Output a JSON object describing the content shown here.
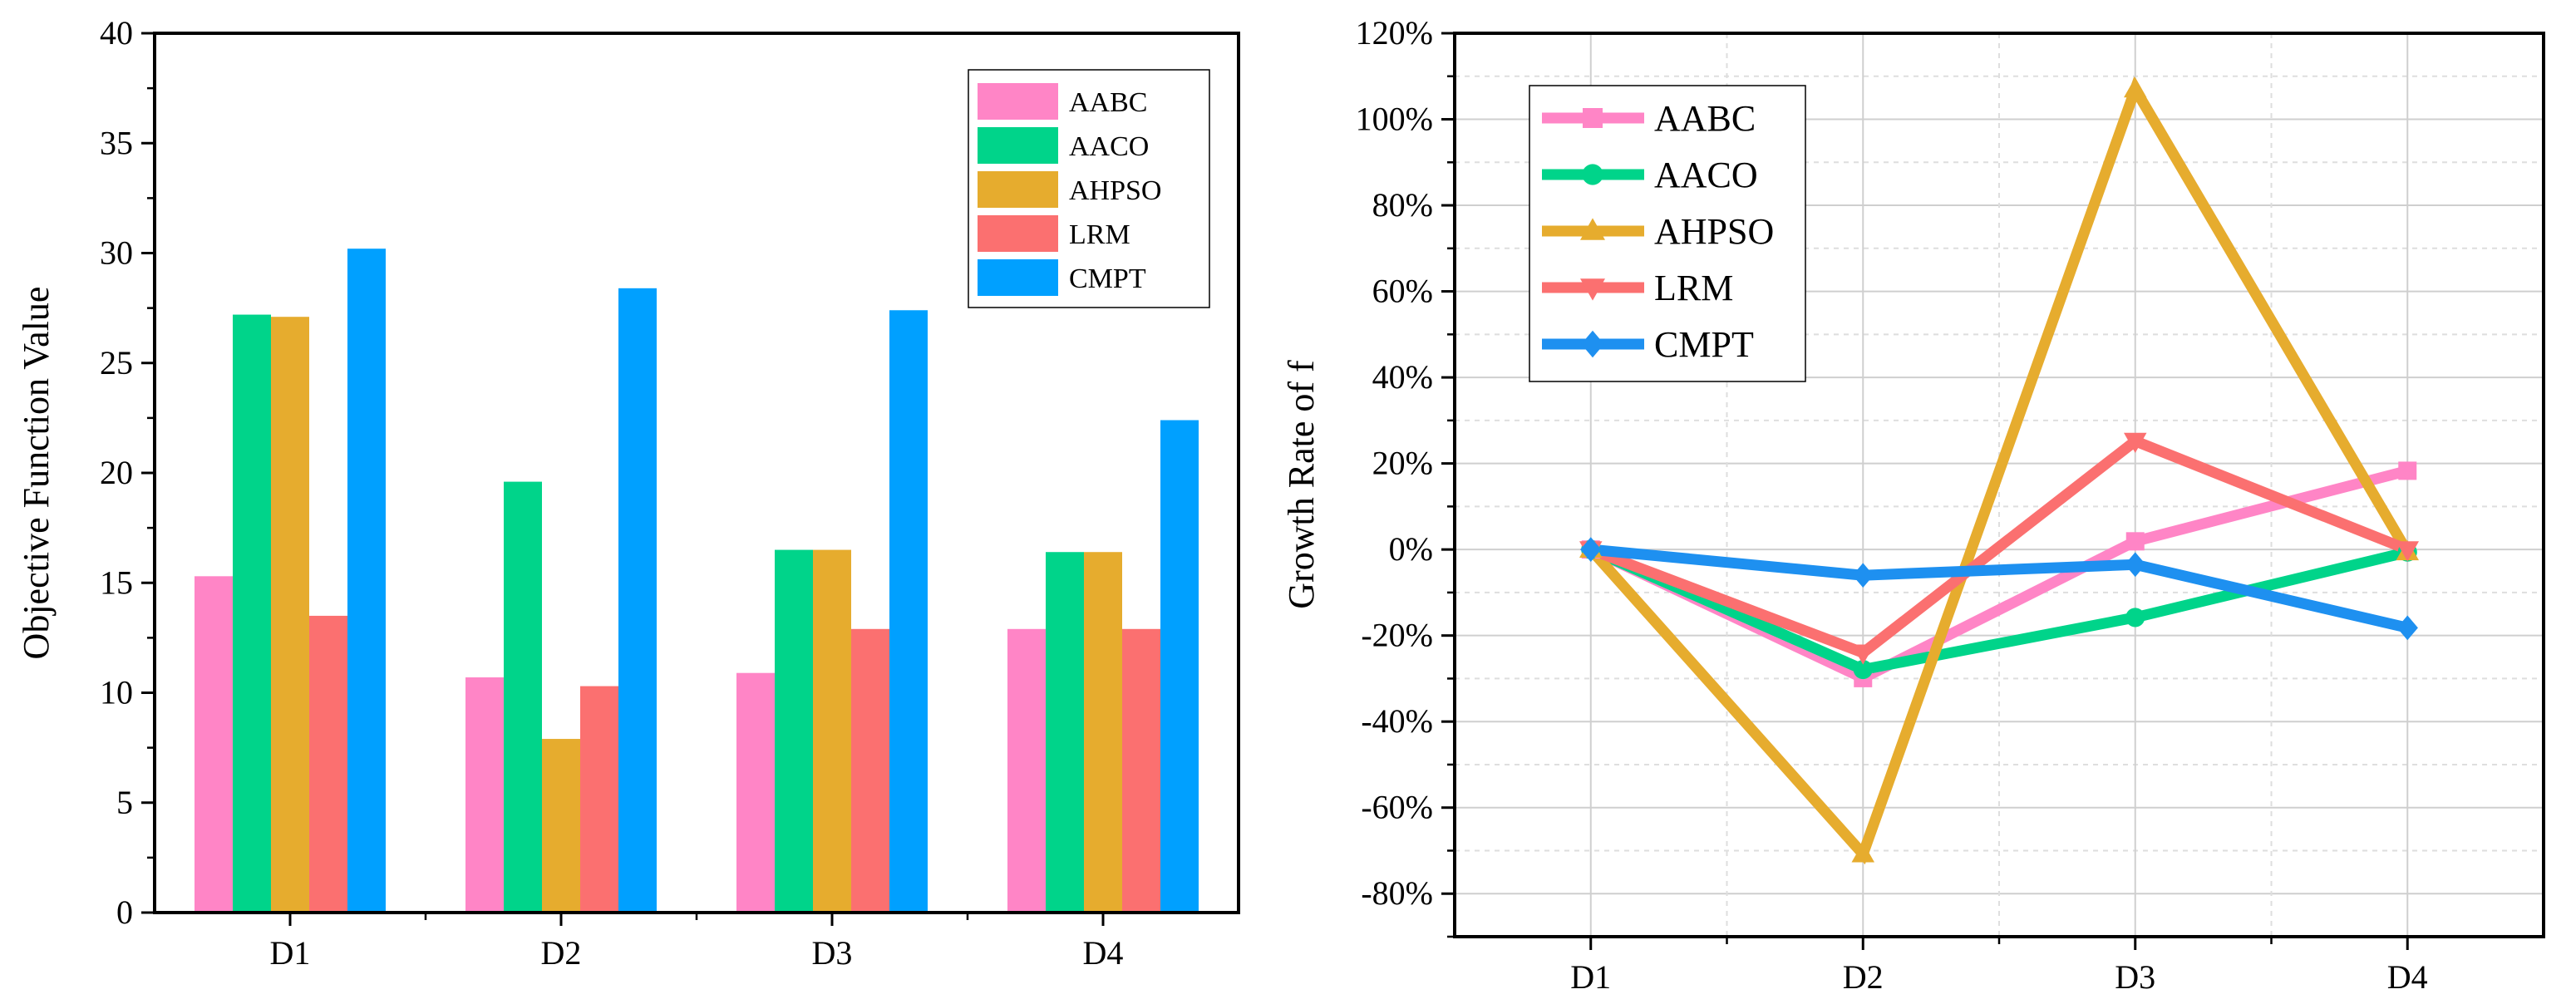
{
  "chart_data": [
    {
      "type": "bar",
      "title": "",
      "xlabel": "",
      "ylabel": "Objective Function Value",
      "categories": [
        "D1",
        "D2",
        "D3",
        "D4"
      ],
      "ylim": [
        0,
        40
      ],
      "yticks": [
        0,
        5,
        10,
        15,
        20,
        25,
        30,
        35,
        40
      ],
      "ytick_labels": [
        "0",
        "5",
        "10",
        "15",
        "20",
        "25",
        "30",
        "35",
        "40"
      ],
      "legend_position": "top-right",
      "grid": false,
      "series": [
        {
          "name": "AABC",
          "color": "#ff85c6",
          "values": [
            15.3,
            10.7,
            10.9,
            12.9
          ]
        },
        {
          "name": "AACO",
          "color": "#00d48a",
          "values": [
            27.2,
            19.6,
            16.5,
            16.4
          ]
        },
        {
          "name": "AHPSO",
          "color": "#e6ac2e",
          "values": [
            27.1,
            7.9,
            16.5,
            16.4
          ]
        },
        {
          "name": "LRM",
          "color": "#fb7070",
          "values": [
            13.5,
            10.3,
            12.9,
            12.9
          ]
        },
        {
          "name": "CMPT",
          "color": "#00a0ff",
          "values": [
            30.2,
            28.4,
            27.4,
            22.4
          ]
        }
      ]
    },
    {
      "type": "line",
      "title": "",
      "xlabel": "",
      "ylabel": "Growth Rate of f",
      "categories": [
        "D1",
        "D2",
        "D3",
        "D4"
      ],
      "ylim": [
        -90,
        120
      ],
      "yticks": [
        -80,
        -60,
        -40,
        -20,
        0,
        20,
        40,
        60,
        80,
        100,
        120
      ],
      "ytick_labels": [
        "-80%",
        "-60%",
        "-40%",
        "-20%",
        "0%",
        "20%",
        "40%",
        "60%",
        "80%",
        "100%",
        "120%"
      ],
      "legend_position": "top-left",
      "grid": true,
      "series": [
        {
          "name": "AABC",
          "color": "#ff85c6",
          "marker": "square",
          "values": [
            0,
            -29.9,
            1.9,
            18.3
          ]
        },
        {
          "name": "AACO",
          "color": "#00d48a",
          "marker": "circle",
          "values": [
            0,
            -27.9,
            -15.8,
            -0.6
          ]
        },
        {
          "name": "AHPSO",
          "color": "#e6ac2e",
          "marker": "triangle-up",
          "values": [
            0,
            -70.8,
            107.0,
            -0.6
          ]
        },
        {
          "name": "LRM",
          "color": "#fb7070",
          "marker": "triangle-down",
          "values": [
            0,
            -24.0,
            25.2,
            0
          ]
        },
        {
          "name": "CMPT",
          "color": "#1e90f0",
          "marker": "diamond",
          "values": [
            0,
            -6.0,
            -3.5,
            -18.2
          ]
        }
      ]
    }
  ]
}
